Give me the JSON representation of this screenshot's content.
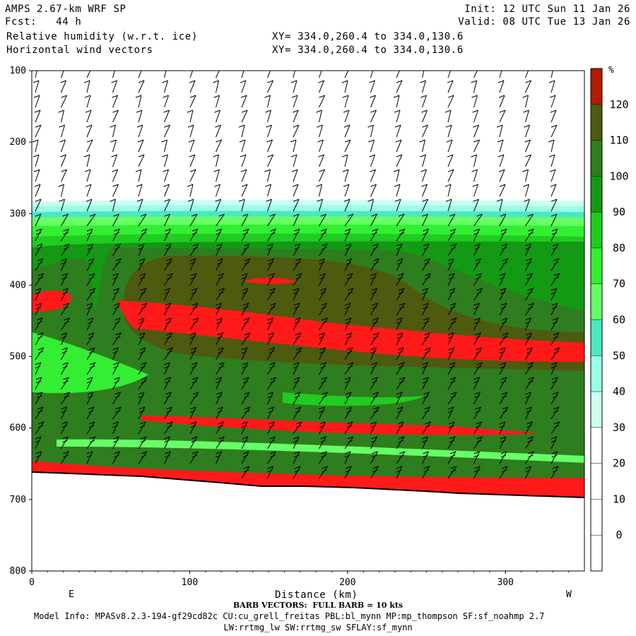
{
  "header": {
    "model": "AMPS 2.67-km WRF SP",
    "fcst": "Fcst:   44 h",
    "field1": "Relative humidity (w.r.t. ice)",
    "field2": "Horizontal wind vectors",
    "init": "Init: 12 UTC Sun 11 Jan 26",
    "valid": "Valid: 08 UTC Tue 13 Jan 26",
    "xy1": "XY= 334.0,260.4 to 334.0,130.6",
    "xy2": "XY= 334.0,260.4 to 334.0,130.6"
  },
  "footer": {
    "barb_note": "BARB VECTORS:  FULL BARB = 10 kts",
    "model_info": "Model Info: MPASv8.2.3-194-gf29cd82c CU:cu_grell_freitas PBL:bl_mynn MP:mp_thompson SF:sf_noahmp 2.7",
    "model_info2": "LW:rrtmg_lw SW:rrtmg_sw SFLAY:sf_mynn"
  },
  "colors": {
    "white": "#ffffff",
    "c30": "#ccfff0",
    "c40": "#99ffe6",
    "c50": "#4de6c3",
    "c60": "#66ff66",
    "c70": "#33ee33",
    "c80": "#1fcc1f",
    "c90": "#149914",
    "c100": "#2e7d1e",
    "c110": "#4d5a0f",
    "c120": "#b31a00",
    "c130": "#ff1a1a"
  },
  "chart_data": {
    "type": "cross-section",
    "xlabel": "Distance (km)",
    "ylabel": "",
    "xlim": [
      0,
      350
    ],
    "ylim": [
      800,
      100
    ],
    "x_ticks": [
      "0",
      "100",
      "200",
      "300"
    ],
    "y_ticks": [
      "100",
      "200",
      "300",
      "400",
      "500",
      "600",
      "700",
      "800"
    ],
    "x_ends": [
      "E",
      "W"
    ],
    "colorbar": {
      "unit": "%",
      "levels": [
        0,
        10,
        20,
        30,
        40,
        50,
        60,
        70,
        80,
        90,
        100,
        110,
        120
      ],
      "labels": [
        "0",
        "10",
        "20",
        "30",
        "40",
        "50",
        "60",
        "70",
        "80",
        "90",
        "100",
        "110",
        "120"
      ]
    }
  }
}
